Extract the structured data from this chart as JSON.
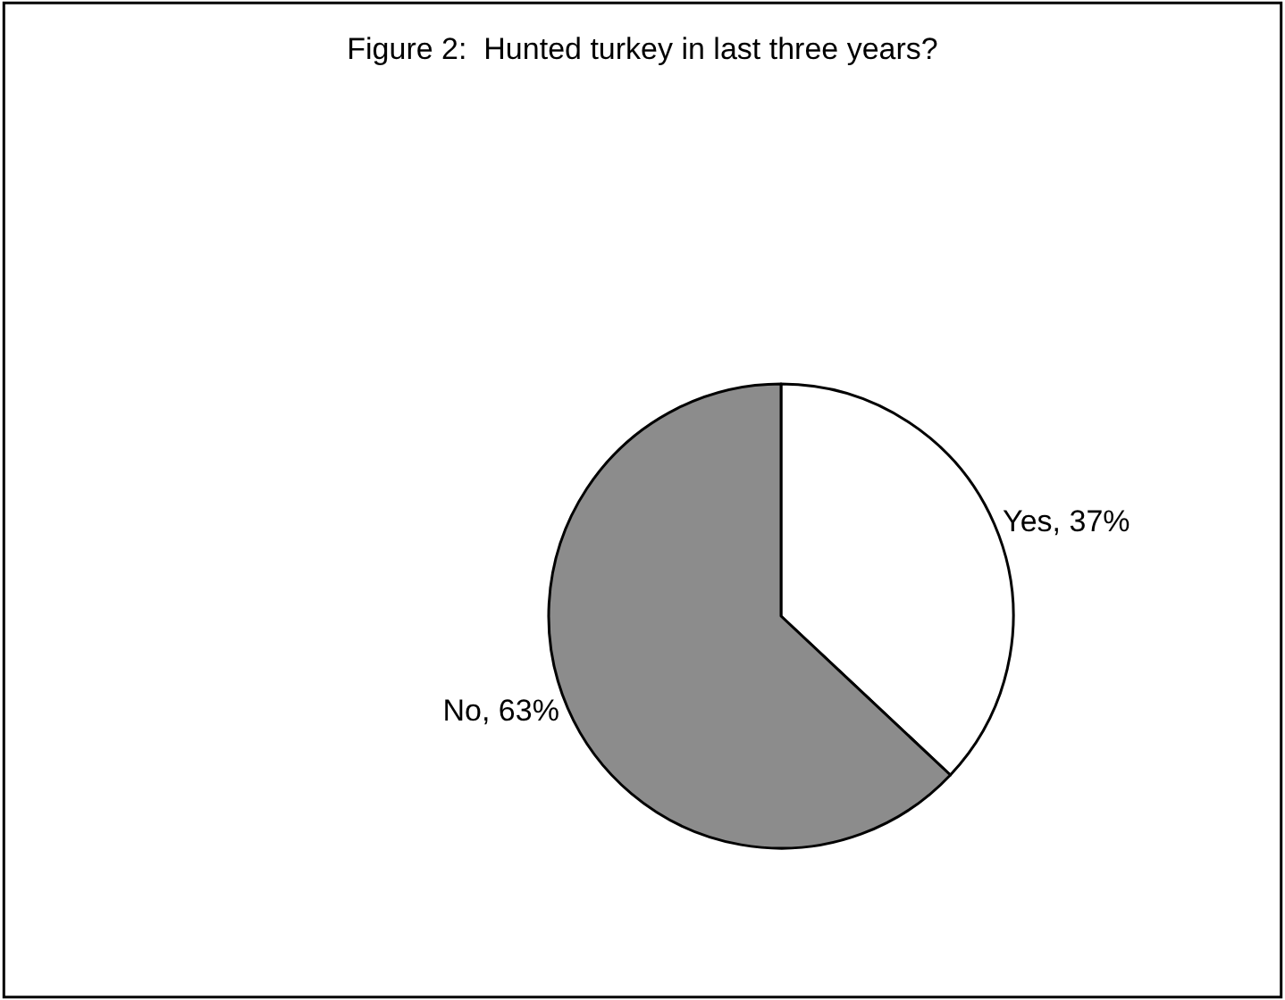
{
  "chart_data": {
    "type": "pie",
    "title": "Figure 2:  Hunted turkey in last three years?",
    "categories": [
      "Yes",
      "No"
    ],
    "values": [
      37,
      63
    ],
    "colors": [
      "#ffffff",
      "#8c8c8c"
    ],
    "value_labels": [
      "37%",
      "63%"
    ],
    "legend": false
  }
}
